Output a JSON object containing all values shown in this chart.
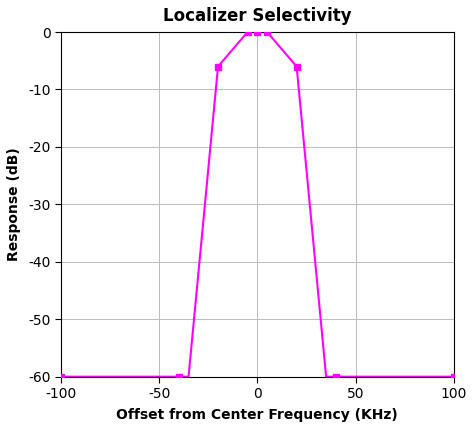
{
  "title": "Localizer Selectivity",
  "xlabel": "Offset from Center Frequency (KHz)",
  "ylabel": "Response (dB)",
  "x_data": [
    -100,
    -40,
    -35,
    -20,
    -5,
    0,
    5,
    20,
    35,
    40,
    100
  ],
  "y_data": [
    -60,
    -60,
    -60,
    -6,
    0,
    0,
    0,
    -6,
    -60,
    -60,
    -60
  ],
  "marker_x": [
    -100,
    -40,
    -20,
    -5,
    0,
    5,
    20,
    40,
    100
  ],
  "marker_y": [
    -60,
    -60,
    -6,
    0,
    0,
    0,
    -6,
    -60,
    -60
  ],
  "xlim": [
    -100,
    100
  ],
  "ylim": [
    -60,
    0
  ],
  "xticks": [
    -100,
    -50,
    0,
    50,
    100
  ],
  "yticks": [
    0,
    -10,
    -20,
    -30,
    -40,
    -50,
    -60
  ],
  "line_color": "#FF00FF",
  "marker_color": "#FF00FF",
  "bg_color": "#FFFFFF",
  "grid_color": "#BBBBBB",
  "title_fontsize": 12,
  "label_fontsize": 10,
  "tick_fontsize": 10
}
